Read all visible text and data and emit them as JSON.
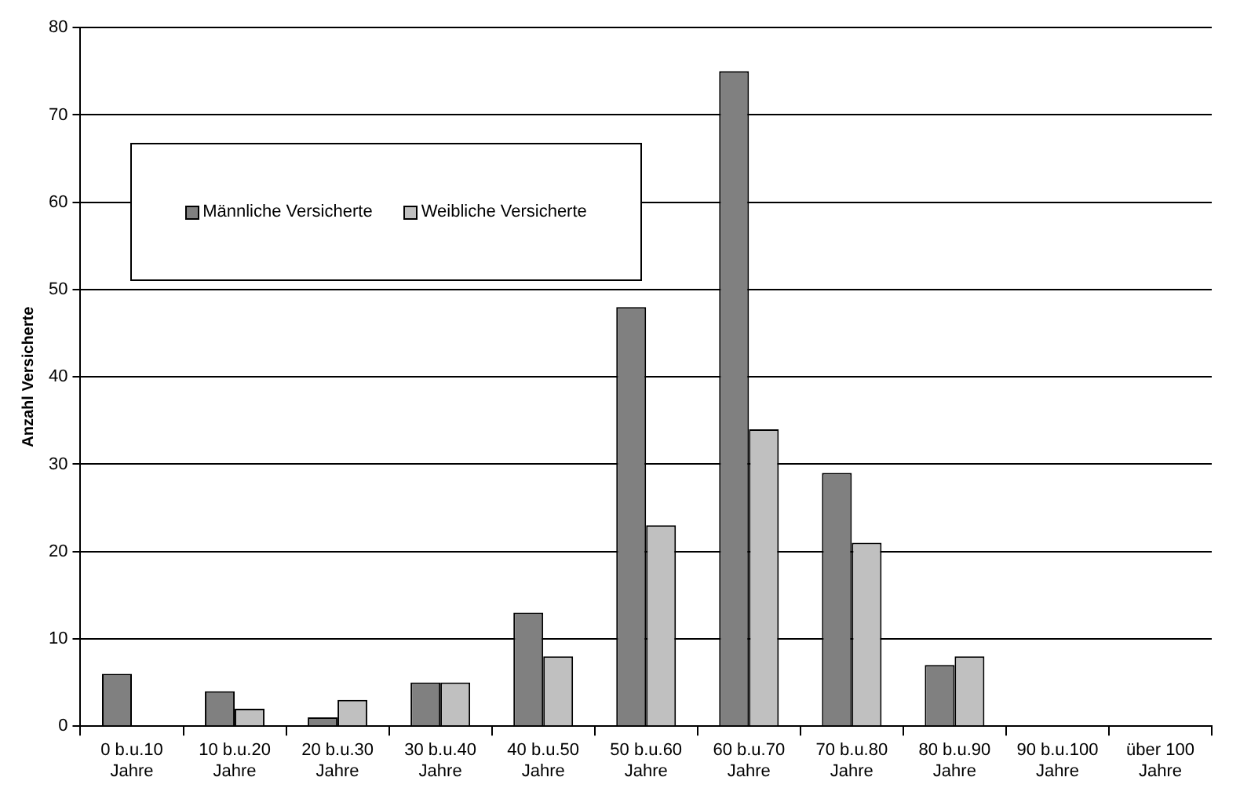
{
  "chart_data": {
    "type": "bar",
    "ylabel": "Anzahl Versicherte",
    "categories": [
      "0 b.u.10 Jahre",
      "10 b.u.20 Jahre",
      "20 b.u.30 Jahre",
      "30 b.u.40 Jahre",
      "40 b.u.50 Jahre",
      "50 b.u.60 Jahre",
      "60 b.u.70 Jahre",
      "70 b.u.80 Jahre",
      "80 b.u.90 Jahre",
      "90 b.u.100 Jahre",
      "über 100 Jahre"
    ],
    "series": [
      {
        "name": "Männliche Versicherte",
        "color": "#808080",
        "values": [
          6,
          4,
          1,
          5,
          13,
          48,
          75,
          29,
          7,
          0,
          0
        ]
      },
      {
        "name": "Weibliche Versicherte",
        "color": "#c0c0c0",
        "values": [
          0,
          2,
          3,
          5,
          8,
          23,
          34,
          21,
          8,
          0,
          0
        ]
      }
    ],
    "ylim": [
      0,
      80
    ],
    "yticks": [
      0,
      10,
      20,
      30,
      40,
      50,
      60,
      70,
      80
    ],
    "grid": "y",
    "legend": "top left"
  }
}
